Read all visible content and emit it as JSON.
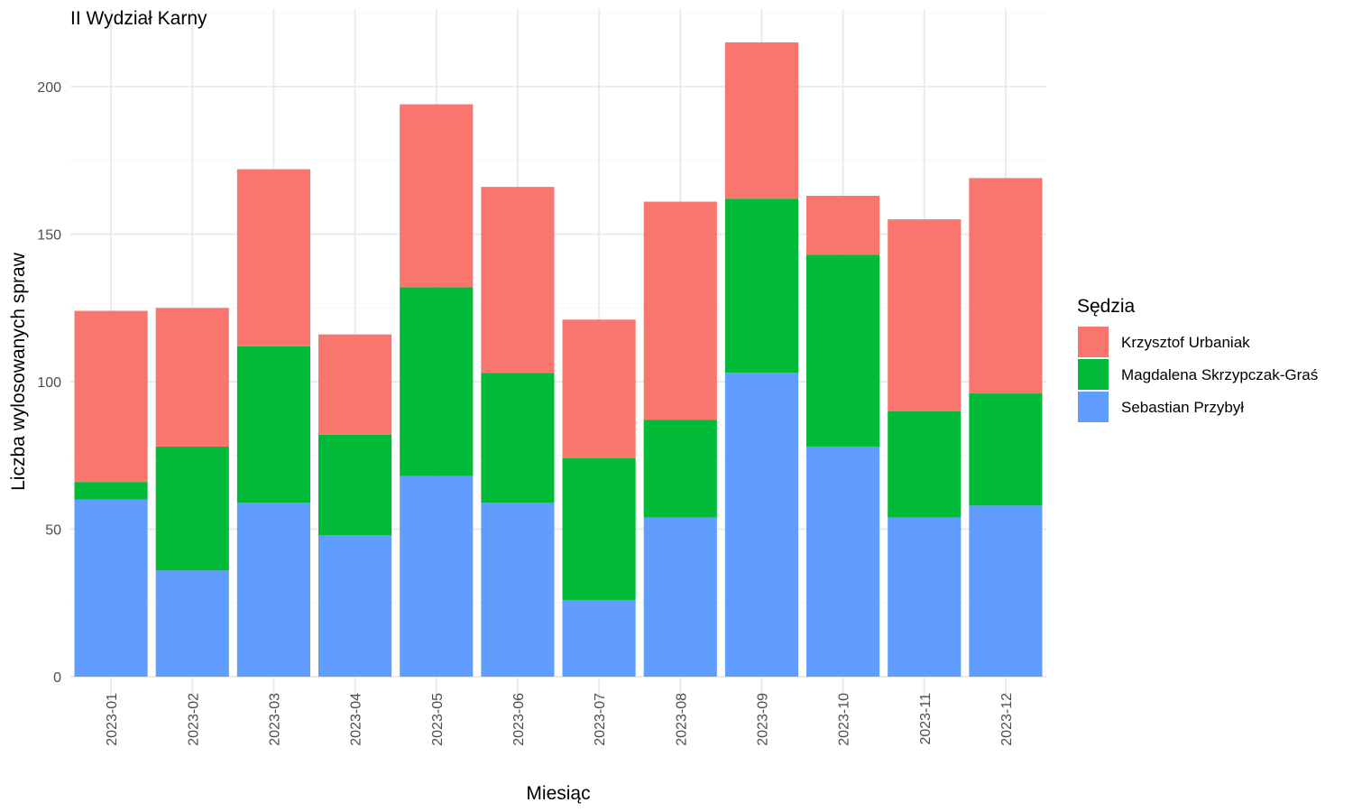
{
  "chart_data": {
    "type": "bar",
    "stacked": true,
    "title": "II Wydział Karny",
    "xlabel": "Miesiąc",
    "ylabel": "Liczba wylosowanych spraw",
    "ylim": [
      0,
      220
    ],
    "yticks": [
      0,
      50,
      100,
      150,
      200
    ],
    "grid": true,
    "legend_title": "Sędzia",
    "legend_position": "right",
    "categories": [
      "2023-01",
      "2023-02",
      "2023-03",
      "2023-04",
      "2023-05",
      "2023-06",
      "2023-07",
      "2023-08",
      "2023-09",
      "2023-10",
      "2023-11",
      "2023-12"
    ],
    "series": [
      {
        "name": "Sebastian Przybył",
        "color": "#619CFF",
        "values": [
          60,
          36,
          59,
          48,
          68,
          59,
          26,
          54,
          103,
          78,
          54,
          58
        ]
      },
      {
        "name": "Magdalena Skrzypczak-Graś",
        "color": "#00BA38",
        "values": [
          6,
          42,
          53,
          34,
          64,
          44,
          48,
          33,
          59,
          65,
          36,
          38
        ]
      },
      {
        "name": "Krzysztof Urbaniak",
        "color": "#F8766D",
        "values": [
          58,
          47,
          60,
          34,
          62,
          63,
          47,
          74,
          53,
          20,
          65,
          73
        ]
      }
    ],
    "legend_order": [
      "Krzysztof Urbaniak",
      "Magdalena Skrzypczak-Graś",
      "Sebastian Przybył"
    ]
  }
}
